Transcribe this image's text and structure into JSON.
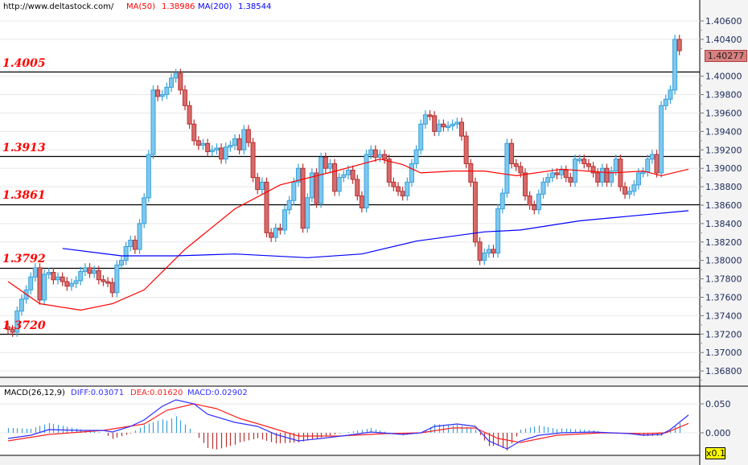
{
  "header": {
    "site": "http://www.deltastock.com/",
    "ma50_label": "MA(50)",
    "ma50_value": "1.38986",
    "ma200_label": "MA(200)",
    "ma200_value": "1.38544"
  },
  "macd_header": {
    "title": "MACD(26,12,9)",
    "diff": "DIFF:0.03071",
    "dea": "DEA:0.01620",
    "macd": "MACD:0.02902"
  },
  "current_price_label": "1.40277",
  "scale_badge": "x0.1",
  "colors": {
    "up": "#3aa0d8",
    "up_fill": "#7ec8ee",
    "down": "#b83232",
    "down_fill": "#d86a6a",
    "ma50": "#ff0000",
    "ma200": "#0000ff",
    "diff": "#3030ff",
    "dea": "#ff2020",
    "level": "#000000",
    "level_text": "#ff0000"
  },
  "chart_data": [
    {
      "type": "candlestick",
      "title": "",
      "y_axis": {
        "ylim": [
          1.3665,
          1.4074
        ],
        "ticks": [
          "1.40600",
          "1.40400",
          "1.40000",
          "1.39800",
          "1.39600",
          "1.39400",
          "1.39200",
          "1.39000",
          "1.38800",
          "1.38600",
          "1.38400",
          "1.38200",
          "1.38000",
          "1.37800",
          "1.37600",
          "1.37400",
          "1.37200",
          "1.37000",
          "1.36800"
        ],
        "grid": true,
        "position": "right"
      },
      "levels": [
        {
          "label": "1.4005",
          "value": 1.4005
        },
        {
          "label": "1.3913",
          "value": 1.3913
        },
        {
          "label": "1.3861",
          "value": 1.3861
        },
        {
          "label": "1.3792",
          "value": 1.3792
        },
        {
          "label": "1.3720",
          "value": 1.372
        }
      ],
      "close": [
        1.3725,
        1.3722,
        1.3745,
        1.3758,
        1.3768,
        1.3782,
        1.3792,
        1.3757,
        1.3785,
        1.3787,
        1.3779,
        1.3782,
        1.3777,
        1.3772,
        1.3775,
        1.3778,
        1.3788,
        1.3792,
        1.3786,
        1.3789,
        1.3779,
        1.3777,
        1.3776,
        1.3765,
        1.3795,
        1.38,
        1.3815,
        1.3822,
        1.3812,
        1.384,
        1.3868,
        1.3915,
        1.3985,
        1.3978,
        1.398,
        1.3988,
        1.3998,
        1.4003,
        1.3985,
        1.3968,
        1.3948,
        1.393,
        1.3925,
        1.3927,
        1.3918,
        1.392,
        1.3922,
        1.391,
        1.3923,
        1.3925,
        1.3932,
        1.392,
        1.3942,
        1.3928,
        1.389,
        1.3877,
        1.3885,
        1.383,
        1.3825,
        1.3835,
        1.3833,
        1.3855,
        1.3865,
        1.3885,
        1.39,
        1.3835,
        1.3868,
        1.3895,
        1.3862,
        1.3912,
        1.39,
        1.3905,
        1.3875,
        1.389,
        1.3893,
        1.3898,
        1.3888,
        1.387,
        1.3857,
        1.3915,
        1.392,
        1.3912,
        1.3915,
        1.391,
        1.3885,
        1.388,
        1.3875,
        1.387,
        1.3885,
        1.3905,
        1.392,
        1.3948,
        1.3958,
        1.3957,
        1.394,
        1.3948,
        1.3945,
        1.3946,
        1.3948,
        1.395,
        1.3935,
        1.3905,
        1.3885,
        1.382,
        1.38,
        1.3808,
        1.3812,
        1.3808,
        1.3856,
        1.3873,
        1.3927,
        1.3905,
        1.3902,
        1.3895,
        1.387,
        1.386,
        1.3855,
        1.3872,
        1.3885,
        1.389,
        1.3895,
        1.3893,
        1.3898,
        1.389,
        1.3885,
        1.391,
        1.391,
        1.3905,
        1.3902,
        1.3895,
        1.3885,
        1.39,
        1.3885,
        1.3897,
        1.391,
        1.388,
        1.3872,
        1.3875,
        1.3882,
        1.3895,
        1.3896,
        1.391,
        1.3915,
        1.3895,
        1.3968,
        1.3975,
        1.3985,
        1.404,
        1.40277
      ],
      "series": [
        {
          "name": "MA(50)",
          "points": [
            [
              0,
              1.3777
            ],
            [
              7,
              1.3753
            ],
            [
              16,
              1.3746
            ],
            [
              23,
              1.3753
            ],
            [
              30,
              1.3768
            ],
            [
              39,
              1.3812
            ],
            [
              50,
              1.3856
            ],
            [
              60,
              1.3882
            ],
            [
              73,
              1.3898
            ],
            [
              82,
              1.391
            ],
            [
              87,
              1.3904
            ],
            [
              91,
              1.3895
            ],
            [
              98,
              1.3897
            ],
            [
              105,
              1.3897
            ],
            [
              112,
              1.3892
            ],
            [
              122,
              1.3899
            ],
            [
              133,
              1.3895
            ],
            [
              140,
              1.3897
            ],
            [
              144,
              1.3892
            ],
            [
              150,
              1.3899
            ]
          ]
        },
        {
          "name": "MA(200)",
          "points": [
            [
              12,
              1.3813
            ],
            [
              25,
              1.3805
            ],
            [
              37,
              1.3805
            ],
            [
              50,
              1.3807
            ],
            [
              66,
              1.3803
            ],
            [
              78,
              1.3807
            ],
            [
              90,
              1.3821
            ],
            [
              105,
              1.3831
            ],
            [
              113,
              1.3833
            ],
            [
              126,
              1.3843
            ],
            [
              137,
              1.3848
            ],
            [
              150,
              1.3854
            ]
          ]
        }
      ]
    },
    {
      "type": "macd",
      "y_axis": {
        "ylim": [
          -0.037,
          0.085
        ],
        "ticks": [
          "0.050",
          "0.000"
        ],
        "position": "right"
      },
      "series": [
        {
          "name": "DIFF",
          "points": [
            [
              0,
              -0.0097
            ],
            [
              5,
              -0.0042
            ],
            [
              9,
              0.0056
            ],
            [
              16,
              0.0042
            ],
            [
              21,
              0.0042
            ],
            [
              23,
              0.0014
            ],
            [
              27,
              0.0111
            ],
            [
              30,
              0.0222
            ],
            [
              34,
              0.0458
            ],
            [
              37,
              0.0569
            ],
            [
              41,
              0.05
            ],
            [
              44,
              0.0319
            ],
            [
              50,
              0.0181
            ],
            [
              55,
              0.0111
            ],
            [
              59,
              -0.0028
            ],
            [
              64,
              -0.0139
            ],
            [
              69,
              -0.0097
            ],
            [
              75,
              -0.0042
            ],
            [
              80,
              0.0014
            ],
            [
              87,
              -0.0028
            ],
            [
              91,
              0.0
            ],
            [
              94,
              0.0111
            ],
            [
              99,
              0.0153
            ],
            [
              103,
              0.0111
            ],
            [
              106,
              -0.0139
            ],
            [
              110,
              -0.0278
            ],
            [
              113,
              -0.0139
            ],
            [
              117,
              -0.0042
            ],
            [
              122,
              0.0
            ],
            [
              129,
              0.0014
            ],
            [
              137,
              -0.0014
            ],
            [
              140,
              -0.0042
            ],
            [
              144,
              -0.0028
            ],
            [
              146,
              0.0056
            ],
            [
              150,
              0.0307
            ]
          ]
        },
        {
          "name": "DEA",
          "points": [
            [
              0,
              -0.0139
            ],
            [
              9,
              -0.0028
            ],
            [
              21,
              0.0042
            ],
            [
              30,
              0.0153
            ],
            [
              35,
              0.0389
            ],
            [
              41,
              0.05
            ],
            [
              46,
              0.0417
            ],
            [
              51,
              0.025
            ],
            [
              57,
              0.0111
            ],
            [
              64,
              -0.0056
            ],
            [
              73,
              -0.0056
            ],
            [
              83,
              -0.0014
            ],
            [
              91,
              0.0
            ],
            [
              98,
              0.0083
            ],
            [
              103,
              0.0083
            ],
            [
              108,
              -0.0097
            ],
            [
              113,
              -0.0167
            ],
            [
              121,
              -0.0042
            ],
            [
              131,
              0.0
            ],
            [
              140,
              -0.0014
            ],
            [
              145,
              0.0
            ],
            [
              150,
              0.0162
            ]
          ]
        }
      ]
    }
  ]
}
